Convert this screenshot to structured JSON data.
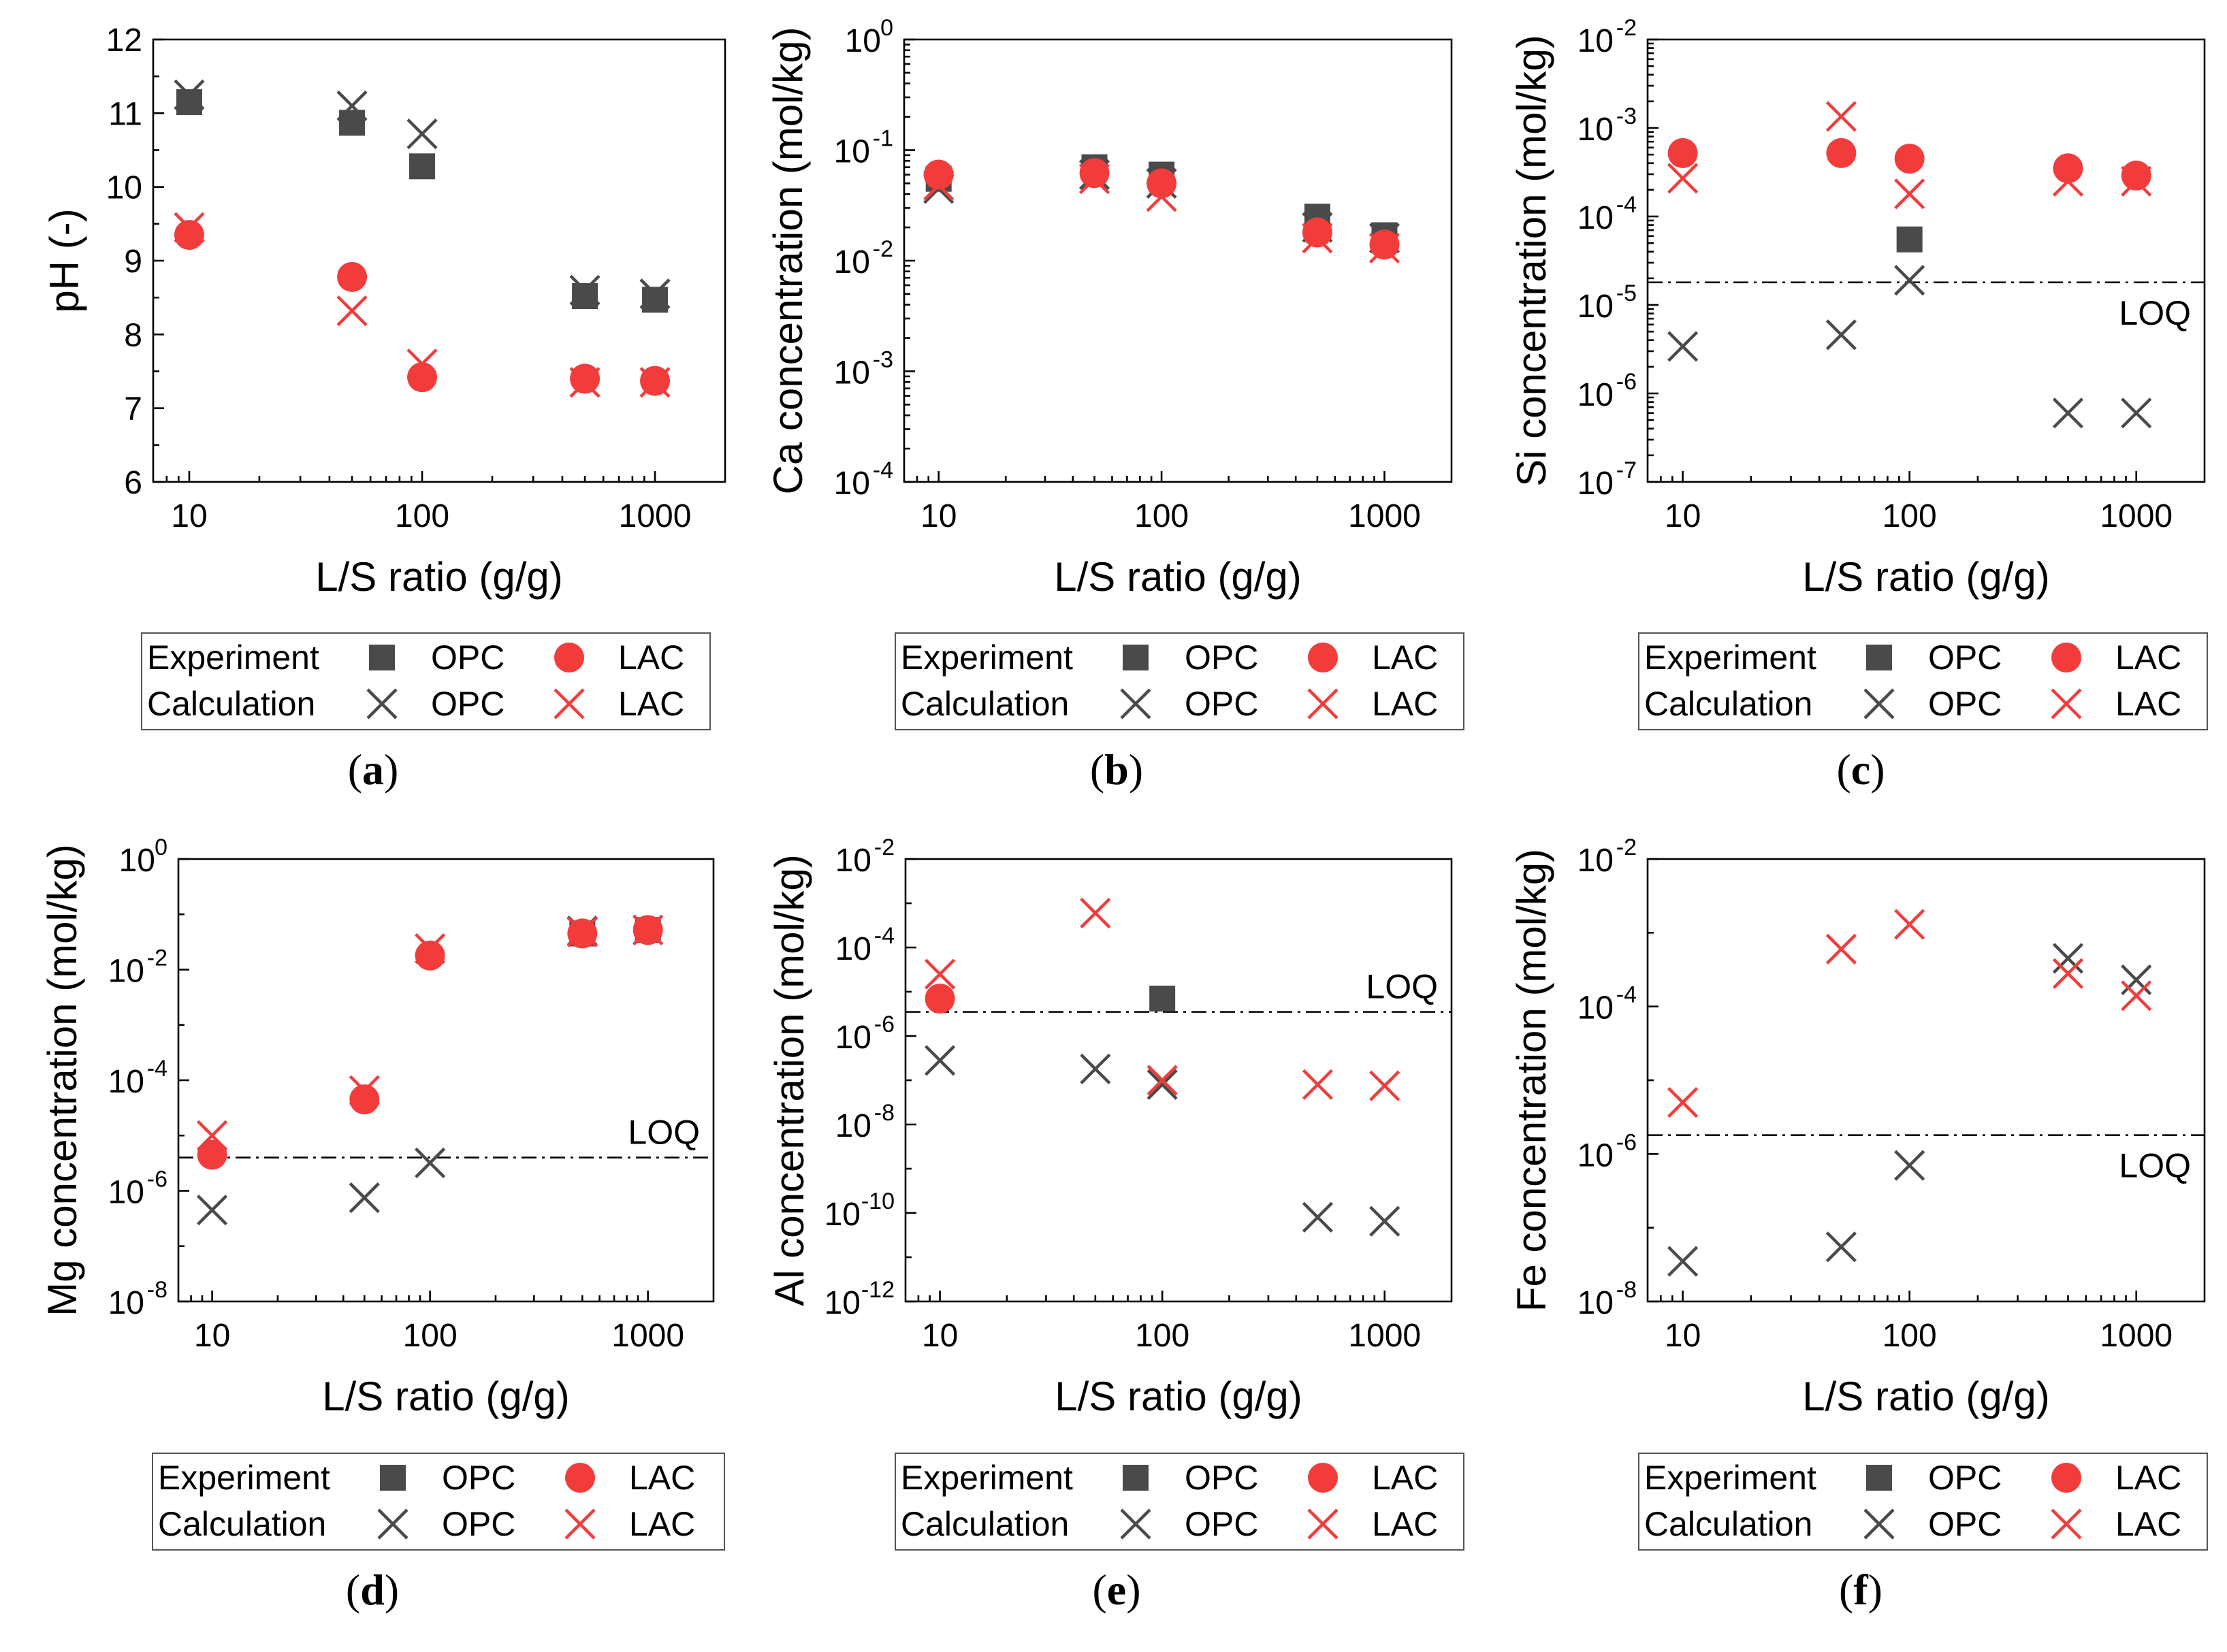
{
  "legend": {
    "experiment": "Experiment",
    "calculation": "Calculation",
    "opc": "OPC",
    "lac": "LAC"
  },
  "colors": {
    "opc": "#4a4a4a",
    "lac": "#f23c3c"
  },
  "chart_data": [
    {
      "type": "scatter",
      "panel": "a",
      "xlabel": "L/S ratio (g/g)",
      "ylabel": "pH (-)",
      "xscale": "log",
      "yscale": "linear",
      "xlim": [
        7,
        2000
      ],
      "ylim": [
        6,
        12
      ],
      "xticks": [
        10,
        100,
        1000
      ],
      "xtick_labels": [
        "10",
        "100",
        "1000"
      ],
      "yticks": [
        6,
        7,
        8,
        9,
        10,
        11,
        12
      ],
      "ytick_labels": [
        "6",
        "7",
        "8",
        "9",
        "10",
        "11",
        "12"
      ],
      "x": [
        10,
        50,
        100,
        500,
        1000
      ],
      "series": [
        {
          "name": "Experiment OPC",
          "marker": "square",
          "color": "opc",
          "values": [
            11.15,
            10.87,
            10.28,
            8.52,
            8.47
          ]
        },
        {
          "name": "Experiment LAC",
          "marker": "circle",
          "color": "lac",
          "values": [
            9.35,
            8.78,
            7.42,
            7.4,
            7.37
          ]
        },
        {
          "name": "Calculation OPC",
          "marker": "cross",
          "color": "opc",
          "values": [
            11.25,
            11.1,
            10.72,
            8.6,
            8.55
          ]
        },
        {
          "name": "Calculation LAC",
          "marker": "cross",
          "color": "lac",
          "values": [
            9.45,
            8.32,
            7.6,
            7.35,
            7.35
          ]
        }
      ],
      "caption": "a"
    },
    {
      "type": "scatter",
      "panel": "b",
      "xlabel": "L/S ratio (g/g)",
      "ylabel": "Ca concentration (mol/kg)",
      "xscale": "log",
      "yscale": "log",
      "xlim": [
        7,
        2000
      ],
      "ylim": [
        0.0001,
        1
      ],
      "xticks": [
        10,
        100,
        1000
      ],
      "xtick_labels": [
        "10",
        "100",
        "1000"
      ],
      "yticks": [
        0.0001,
        0.001,
        0.01,
        0.1,
        1
      ],
      "ytick_labels": [
        [
          "10",
          "-4"
        ],
        [
          "10",
          "-3"
        ],
        [
          "10",
          "-2"
        ],
        [
          "10",
          "-1"
        ],
        [
          "10",
          "0"
        ]
      ],
      "x": [
        10,
        50,
        100,
        500,
        1000
      ],
      "series": [
        {
          "name": "Experiment OPC",
          "marker": "square",
          "color": "opc",
          "values": [
            0.055,
            0.07,
            0.06,
            0.025,
            0.017
          ]
        },
        {
          "name": "Experiment LAC",
          "marker": "circle",
          "color": "lac",
          "values": [
            0.06,
            0.062,
            0.05,
            0.018,
            0.014
          ]
        },
        {
          "name": "Calculation OPC",
          "marker": "cross",
          "color": "opc",
          "values": [
            0.045,
            0.06,
            0.05,
            0.02,
            0.016
          ]
        },
        {
          "name": "Calculation LAC",
          "marker": "cross",
          "color": "lac",
          "values": [
            0.048,
            0.055,
            0.038,
            0.016,
            0.013
          ]
        }
      ],
      "caption": "b"
    },
    {
      "type": "scatter",
      "panel": "c",
      "xlabel": "L/S ratio (g/g)",
      "ylabel": "Si concentration (mol/kg)",
      "xscale": "log",
      "yscale": "log",
      "xlim": [
        7,
        2000
      ],
      "ylim": [
        1e-07,
        0.01
      ],
      "xticks": [
        10,
        100,
        1000
      ],
      "xtick_labels": [
        "10",
        "100",
        "1000"
      ],
      "yticks": [
        1e-07,
        1e-06,
        1e-05,
        0.0001,
        0.001,
        0.01
      ],
      "ytick_labels": [
        [
          "10",
          "-7"
        ],
        [
          "10",
          "-6"
        ],
        [
          "10",
          "-5"
        ],
        [
          "10",
          "-4"
        ],
        [
          "10",
          "-3"
        ],
        [
          "10",
          "-2"
        ]
      ],
      "x": [
        10,
        50,
        100,
        500,
        1000
      ],
      "loq": 1.8e-05,
      "loq_label": "LOQ",
      "loq_label_pos": "below-right",
      "series": [
        {
          "name": "Experiment OPC",
          "marker": "square",
          "color": "opc",
          "x": [
            100
          ],
          "values": [
            5.5e-05
          ]
        },
        {
          "name": "Experiment LAC",
          "marker": "circle",
          "color": "lac",
          "values": [
            0.00052,
            0.00052,
            0.00045,
            0.00035,
            0.00029
          ]
        },
        {
          "name": "Calculation OPC",
          "marker": "cross",
          "color": "opc",
          "values": [
            3.4e-06,
            4.6e-06,
            1.9e-05,
            6e-07,
            6e-07
          ]
        },
        {
          "name": "Calculation LAC",
          "marker": "cross",
          "color": "lac",
          "values": [
            0.00027,
            0.00135,
            0.00018,
            0.00025,
            0.00025
          ]
        }
      ],
      "caption": "c"
    },
    {
      "type": "scatter",
      "panel": "d",
      "xlabel": "L/S ratio (g/g)",
      "ylabel": "Mg concentration (mol/kg)",
      "xscale": "log",
      "yscale": "log",
      "xlim": [
        7,
        2000
      ],
      "ylim": [
        1e-08,
        1
      ],
      "xticks": [
        10,
        100,
        1000
      ],
      "xtick_labels": [
        "10",
        "100",
        "1000"
      ],
      "yticks": [
        1e-08,
        1e-06,
        0.0001,
        0.01,
        1
      ],
      "ytick_labels": [
        [
          "10",
          "-8"
        ],
        [
          "10",
          "-6"
        ],
        [
          "10",
          "-4"
        ],
        [
          "10",
          "-2"
        ],
        [
          "10",
          "0"
        ]
      ],
      "x": [
        10,
        50,
        100,
        500,
        1000
      ],
      "loq": 4e-06,
      "loq_label": "LOQ",
      "loq_label_pos": "above-right",
      "series": [
        {
          "name": "Experiment OPC",
          "marker": "square",
          "color": "opc",
          "x": [
            500,
            1000
          ],
          "values": [
            0.045,
            0.052
          ]
        },
        {
          "name": "Experiment LAC",
          "marker": "circle",
          "color": "lac",
          "values": [
            4.5e-06,
            4.5e-05,
            0.018,
            0.045,
            0.052
          ]
        },
        {
          "name": "Calculation OPC",
          "marker": "cross",
          "color": "opc",
          "values": [
            4.5e-07,
            7.5e-07,
            3.2e-06,
            0.05,
            0.052
          ]
        },
        {
          "name": "Calculation LAC",
          "marker": "cross",
          "color": "lac",
          "values": [
            1e-05,
            6.5e-05,
            0.024,
            0.048,
            0.052
          ]
        }
      ],
      "caption": "d"
    },
    {
      "type": "scatter",
      "panel": "e",
      "xlabel": "L/S ratio (g/g)",
      "ylabel": "Al concentration (mol/kg)",
      "xscale": "log",
      "yscale": "log",
      "xlim": [
        7,
        2000
      ],
      "ylim": [
        1e-12,
        0.01
      ],
      "xticks": [
        10,
        100,
        1000
      ],
      "xtick_labels": [
        "10",
        "100",
        "1000"
      ],
      "yticks": [
        1e-12,
        1e-10,
        1e-08,
        1e-06,
        0.0001,
        0.01
      ],
      "ytick_labels": [
        [
          "10",
          "-12"
        ],
        [
          "10",
          "-10"
        ],
        [
          "10",
          "-8"
        ],
        [
          "10",
          "-6"
        ],
        [
          "10",
          "-4"
        ],
        [
          "10",
          "-2"
        ]
      ],
      "x": [
        10,
        50,
        100,
        500,
        1000
      ],
      "loq": 3.5e-06,
      "loq_label": "LOQ",
      "loq_label_pos": "above-right",
      "series": [
        {
          "name": "Experiment OPC",
          "marker": "square",
          "color": "opc",
          "x": [
            100
          ],
          "values": [
            7e-06
          ]
        },
        {
          "name": "Experiment LAC",
          "marker": "circle",
          "color": "lac",
          "x": [
            10
          ],
          "values": [
            7e-06
          ]
        },
        {
          "name": "Calculation OPC",
          "marker": "cross",
          "color": "opc",
          "values": [
            2.8e-07,
            1.8e-07,
            8e-08,
            8e-11,
            6.5e-11
          ]
        },
        {
          "name": "Calculation LAC",
          "marker": "cross",
          "color": "lac",
          "values": [
            2.5e-05,
            0.0006,
            1e-07,
            8e-08,
            7.5e-08
          ]
        }
      ],
      "caption": "e"
    },
    {
      "type": "scatter",
      "panel": "f",
      "xlabel": "L/S ratio (g/g)",
      "ylabel": "Fe concentration (mol/kg)",
      "xscale": "log",
      "yscale": "log",
      "xlim": [
        7,
        2000
      ],
      "ylim": [
        1e-08,
        0.01
      ],
      "xticks": [
        10,
        100,
        1000
      ],
      "xtick_labels": [
        "10",
        "100",
        "1000"
      ],
      "yticks": [
        1e-08,
        1e-06,
        0.0001,
        0.01
      ],
      "ytick_labels": [
        [
          "10",
          "-8"
        ],
        [
          "10",
          "-6"
        ],
        [
          "10",
          "-4"
        ],
        [
          "10",
          "-2"
        ]
      ],
      "x": [
        10,
        50,
        100,
        500,
        1000
      ],
      "loq": 1.8e-06,
      "loq_label": "LOQ",
      "loq_label_pos": "below-right",
      "series": [
        {
          "name": "Experiment OPC",
          "marker": "square",
          "color": "opc",
          "x": [],
          "values": []
        },
        {
          "name": "Experiment LAC",
          "marker": "circle",
          "color": "lac",
          "x": [],
          "values": []
        },
        {
          "name": "Calculation OPC",
          "marker": "cross",
          "color": "opc",
          "values": [
            3.5e-08,
            5.5e-08,
            7e-07,
            0.00045,
            0.00023
          ]
        },
        {
          "name": "Calculation LAC",
          "marker": "cross",
          "color": "lac",
          "values": [
            5e-06,
            0.0006,
            0.0013,
            0.00028,
            0.00014
          ]
        }
      ],
      "caption": "f"
    }
  ]
}
